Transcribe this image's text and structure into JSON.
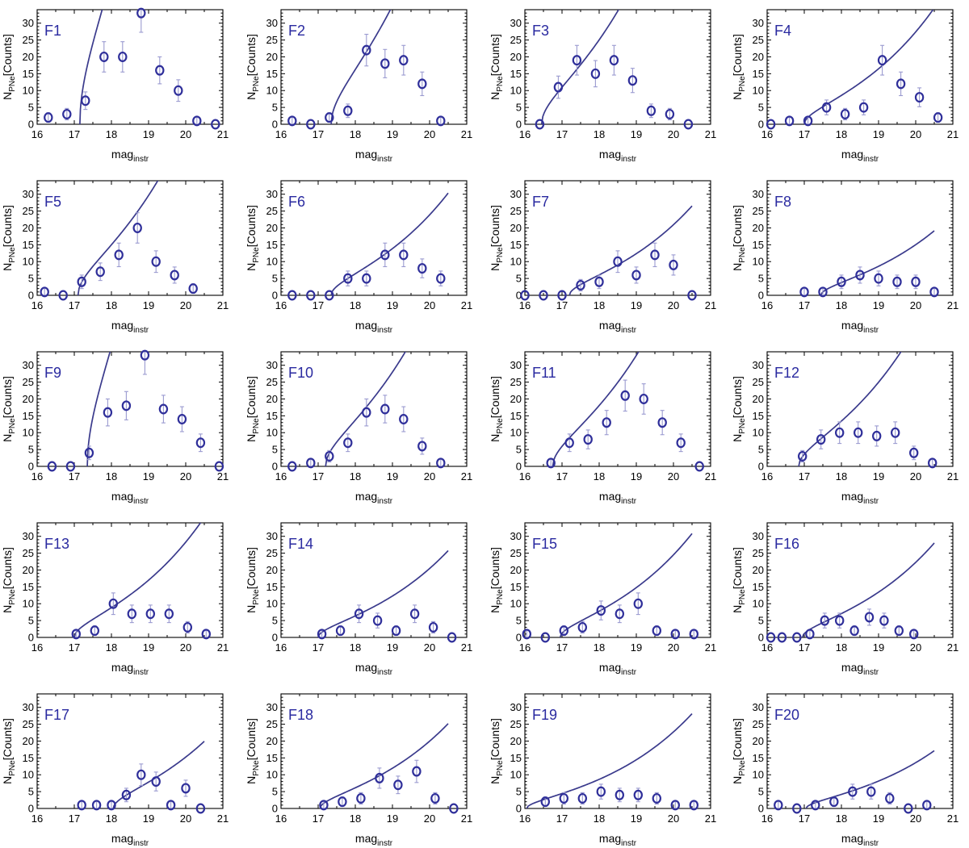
{
  "figure": {
    "x_label": "mag",
    "x_label_sub": "instr",
    "y_label_prefix": "N",
    "y_label_sub": "PNe",
    "y_label_suffix": "[Counts]",
    "colors": {
      "marker": "#2f2f9a",
      "error_bar": "#9a9ad0",
      "fit": "#3a3a8c",
      "panel_label": "#2a2aa0"
    }
  },
  "chart_data": [
    {
      "type": "scatter",
      "label": "F1",
      "xlim": [
        16,
        21
      ],
      "ylim": [
        0,
        34
      ],
      "xticks": [
        16,
        17,
        18,
        19,
        20,
        21
      ],
      "yticks": [
        0,
        5,
        10,
        15,
        20,
        25,
        30
      ],
      "x": [
        16.3,
        16.8,
        17.3,
        17.8,
        18.3,
        18.8,
        19.3,
        19.8,
        20.3,
        20.8
      ],
      "y": [
        2,
        3,
        7,
        20,
        20,
        33,
        16,
        10,
        1,
        0
      ],
      "err": [
        1.4,
        1.7,
        2.6,
        4.5,
        4.5,
        5.7,
        4.0,
        3.2,
        1.0,
        0
      ],
      "fit": {
        "m0": 17.15,
        "A": 36.5,
        "m1": 18.9
      }
    },
    {
      "type": "scatter",
      "label": "F2",
      "xlim": [
        16,
        21
      ],
      "ylim": [
        0,
        34
      ],
      "xticks": [
        16,
        17,
        18,
        19,
        20,
        21
      ],
      "yticks": [
        0,
        5,
        10,
        15,
        20,
        25,
        30
      ],
      "x": [
        16.3,
        16.8,
        17.3,
        17.8,
        18.3,
        18.8,
        19.3,
        19.8,
        20.3
      ],
      "y": [
        1,
        0,
        2,
        4,
        22,
        18,
        19,
        12,
        1
      ],
      "err": [
        1,
        0,
        1.4,
        2,
        4.7,
        4.2,
        4.4,
        3.5,
        1
      ],
      "fit": {
        "m0": 17.35,
        "A": 16.5,
        "m1": 20.5
      }
    },
    {
      "type": "scatter",
      "label": "F3",
      "xlim": [
        16,
        21
      ],
      "ylim": [
        0,
        34
      ],
      "xticks": [
        16,
        17,
        18,
        19,
        20,
        21
      ],
      "yticks": [
        0,
        5,
        10,
        15,
        20,
        25,
        30
      ],
      "x": [
        16.4,
        16.9,
        17.4,
        17.9,
        18.4,
        18.9,
        19.4,
        19.9,
        20.4
      ],
      "y": [
        0,
        11,
        19,
        15,
        19,
        13,
        4,
        3,
        0
      ],
      "err": [
        0,
        3.3,
        4.4,
        3.9,
        4.4,
        3.6,
        2,
        1.7,
        0
      ],
      "fit": {
        "m0": 16.45,
        "A": 12.5,
        "m1": 20.5
      }
    },
    {
      "type": "scatter",
      "label": "F4",
      "xlim": [
        16,
        21
      ],
      "ylim": [
        0,
        34
      ],
      "xticks": [
        16,
        17,
        18,
        19,
        20,
        21
      ],
      "yticks": [
        0,
        5,
        10,
        15,
        20,
        25,
        30
      ],
      "x": [
        16.1,
        16.6,
        17.1,
        17.6,
        18.1,
        18.6,
        19.1,
        19.6,
        20.1,
        20.6
      ],
      "y": [
        0,
        1,
        1,
        5,
        3,
        5,
        19,
        12,
        8,
        2
      ],
      "err": [
        0,
        1,
        1,
        2.2,
        1.7,
        2.2,
        4.4,
        3.5,
        2.8,
        1.4
      ],
      "fit": {
        "m0": 17.0,
        "A": 6.3,
        "m1": 20.5
      }
    },
    {
      "type": "scatter",
      "label": "F5",
      "xlim": [
        16,
        21
      ],
      "ylim": [
        0,
        34
      ],
      "xticks": [
        16,
        17,
        18,
        19,
        20,
        21
      ],
      "yticks": [
        0,
        5,
        10,
        15,
        20,
        25,
        30
      ],
      "x": [
        16.2,
        16.7,
        17.2,
        17.7,
        18.2,
        18.7,
        19.2,
        19.7,
        20.2
      ],
      "y": [
        1,
        0,
        4,
        7,
        12,
        20,
        10,
        6,
        2
      ],
      "err": [
        1,
        0,
        2,
        2.6,
        3.5,
        4.5,
        3.2,
        2.4,
        1.4
      ],
      "fit": {
        "m0": 17.1,
        "A": 12.0,
        "m1": 20.5
      }
    },
    {
      "type": "scatter",
      "label": "F6",
      "xlim": [
        16,
        21
      ],
      "ylim": [
        0,
        34
      ],
      "xticks": [
        16,
        17,
        18,
        19,
        20,
        21
      ],
      "yticks": [
        0,
        5,
        10,
        15,
        20,
        25,
        30
      ],
      "x": [
        16.3,
        16.8,
        17.3,
        17.8,
        18.3,
        18.8,
        19.3,
        19.8,
        20.3
      ],
      "y": [
        0,
        0,
        0,
        5,
        5,
        12,
        12,
        8,
        5
      ],
      "err": [
        0,
        0,
        0,
        2.2,
        2.2,
        3.5,
        3.5,
        2.8,
        2.2
      ],
      "fit": {
        "m0": 17.35,
        "A": 6.5,
        "m1": 20.5
      }
    },
    {
      "type": "scatter",
      "label": "F7",
      "xlim": [
        16,
        21
      ],
      "ylim": [
        0,
        34
      ],
      "xticks": [
        16,
        17,
        18,
        19,
        20,
        21
      ],
      "yticks": [
        0,
        5,
        10,
        15,
        20,
        25,
        30
      ],
      "x": [
        16.0,
        16.5,
        17.0,
        17.5,
        18.0,
        18.5,
        19.0,
        19.5,
        20.0,
        20.5
      ],
      "y": [
        0,
        0,
        0,
        3,
        4,
        10,
        6,
        12,
        9,
        0
      ],
      "err": [
        0,
        0,
        0,
        1.7,
        2,
        3.2,
        2.4,
        3.5,
        3,
        0
      ],
      "fit": {
        "m0": 17.2,
        "A": 5.3,
        "m1": 20.5
      }
    },
    {
      "type": "scatter",
      "label": "F8",
      "xlim": [
        16,
        21
      ],
      "ylim": [
        0,
        34
      ],
      "xticks": [
        16,
        17,
        18,
        19,
        20,
        21
      ],
      "yticks": [
        0,
        5,
        10,
        15,
        20,
        25,
        30
      ],
      "x": [
        17.0,
        17.5,
        18.0,
        18.5,
        19.0,
        19.5,
        20.0,
        20.5
      ],
      "y": [
        1,
        1,
        4,
        6,
        5,
        4,
        4,
        1
      ],
      "err": [
        1,
        1,
        2,
        2.4,
        2.2,
        2,
        2,
        1
      ],
      "fit": {
        "m0": 17.45,
        "A": 4.3,
        "m1": 20.5
      }
    },
    {
      "type": "scatter",
      "label": "F9",
      "xlim": [
        16,
        21
      ],
      "ylim": [
        0,
        34
      ],
      "xticks": [
        16,
        17,
        18,
        19,
        20,
        21
      ],
      "yticks": [
        0,
        5,
        10,
        15,
        20,
        25,
        30
      ],
      "x": [
        16.4,
        16.9,
        17.4,
        17.9,
        18.4,
        18.9,
        19.4,
        19.9,
        20.4,
        20.9
      ],
      "y": [
        0,
        0,
        4,
        16,
        18,
        33,
        17,
        14,
        7,
        0
      ],
      "err": [
        0,
        0,
        2,
        4,
        4.2,
        5.7,
        4.1,
        3.7,
        2.6,
        0
      ],
      "fit": {
        "m0": 17.35,
        "A": 36.0,
        "m1": 18.9
      }
    },
    {
      "type": "scatter",
      "label": "F10",
      "xlim": [
        16,
        21
      ],
      "ylim": [
        0,
        34
      ],
      "xticks": [
        16,
        17,
        18,
        19,
        20,
        21
      ],
      "yticks": [
        0,
        5,
        10,
        15,
        20,
        25,
        30
      ],
      "x": [
        16.3,
        16.8,
        17.3,
        17.8,
        18.3,
        18.8,
        19.3,
        19.8,
        20.3
      ],
      "y": [
        0,
        1,
        3,
        7,
        16,
        17,
        14,
        6,
        1
      ],
      "err": [
        0,
        1,
        1.7,
        2.6,
        4,
        4.1,
        3.7,
        2.4,
        1
      ],
      "fit": {
        "m0": 17.2,
        "A": 12.0,
        "m1": 20.5
      }
    },
    {
      "type": "scatter",
      "label": "F11",
      "xlim": [
        16,
        21
      ],
      "ylim": [
        0,
        34
      ],
      "xticks": [
        16,
        17,
        18,
        19,
        20,
        21
      ],
      "yticks": [
        0,
        5,
        10,
        15,
        20,
        25,
        30
      ],
      "x": [
        16.7,
        17.2,
        17.7,
        18.2,
        18.7,
        19.2,
        19.7,
        20.2,
        20.7
      ],
      "y": [
        1,
        7,
        8,
        13,
        21,
        20,
        13,
        7,
        0
      ],
      "err": [
        1,
        2.6,
        2.8,
        3.6,
        4.6,
        4.5,
        3.6,
        2.6,
        0
      ],
      "fit": {
        "m0": 16.75,
        "A": 11.0,
        "m1": 20.5
      }
    },
    {
      "type": "scatter",
      "label": "F12",
      "xlim": [
        16,
        21
      ],
      "ylim": [
        0,
        34
      ],
      "xticks": [
        16,
        17,
        18,
        19,
        20,
        21
      ],
      "yticks": [
        0,
        5,
        10,
        15,
        20,
        25,
        30
      ],
      "x": [
        16.95,
        17.45,
        17.95,
        18.45,
        18.95,
        19.45,
        19.95,
        20.45
      ],
      "y": [
        3,
        8,
        10,
        10,
        9,
        10,
        4,
        1
      ],
      "err": [
        1.7,
        2.8,
        3.2,
        3.2,
        3,
        3.2,
        2,
        1
      ],
      "fit": {
        "m0": 16.85,
        "A": 8.8,
        "m1": 20.5
      }
    },
    {
      "type": "scatter",
      "label": "F13",
      "xlim": [
        16,
        21
      ],
      "ylim": [
        0,
        34
      ],
      "xticks": [
        16,
        17,
        18,
        19,
        20,
        21
      ],
      "yticks": [
        0,
        5,
        10,
        15,
        20,
        25,
        30
      ],
      "x": [
        17.05,
        17.55,
        18.05,
        18.55,
        19.05,
        19.55,
        20.05,
        20.55
      ],
      "y": [
        1,
        2,
        10,
        7,
        7,
        7,
        3,
        1
      ],
      "err": [
        1,
        1.4,
        3.2,
        2.6,
        2.6,
        2.6,
        1.7,
        1
      ],
      "fit": {
        "m0": 17.0,
        "A": 6.5,
        "m1": 20.5
      }
    },
    {
      "type": "scatter",
      "label": "F14",
      "xlim": [
        16,
        21
      ],
      "ylim": [
        0,
        34
      ],
      "xticks": [
        16,
        17,
        18,
        19,
        20,
        21
      ],
      "yticks": [
        0,
        5,
        10,
        15,
        20,
        25,
        30
      ],
      "x": [
        17.1,
        17.6,
        18.1,
        18.6,
        19.1,
        19.6,
        20.1,
        20.6
      ],
      "y": [
        1,
        2,
        7,
        5,
        2,
        7,
        3,
        0
      ],
      "err": [
        1,
        1.4,
        2.6,
        2.2,
        1.4,
        2.6,
        1.7,
        0
      ],
      "fit": {
        "m0": 17.0,
        "A": 4.7,
        "m1": 20.5
      }
    },
    {
      "type": "scatter",
      "label": "F15",
      "xlim": [
        16,
        21
      ],
      "ylim": [
        0,
        34
      ],
      "xticks": [
        16,
        17,
        18,
        19,
        20,
        21
      ],
      "yticks": [
        0,
        5,
        10,
        15,
        20,
        25,
        30
      ],
      "x": [
        16.05,
        16.55,
        17.05,
        17.55,
        18.05,
        18.55,
        19.05,
        19.55,
        20.05,
        20.55
      ],
      "y": [
        1,
        0,
        2,
        3,
        8,
        7,
        10,
        2,
        1,
        1
      ],
      "err": [
        1,
        0,
        1.4,
        1.7,
        2.8,
        2.6,
        3.2,
        1.4,
        1,
        1
      ],
      "fit": {
        "m0": 16.95,
        "A": 5.5,
        "m1": 20.5
      }
    },
    {
      "type": "scatter",
      "label": "F16",
      "xlim": [
        16,
        21
      ],
      "ylim": [
        0,
        34
      ],
      "xticks": [
        16,
        17,
        18,
        19,
        20,
        21
      ],
      "yticks": [
        0,
        5,
        10,
        15,
        20,
        25,
        30
      ],
      "x": [
        16.1,
        16.4,
        16.8,
        17.15,
        17.55,
        17.95,
        18.35,
        18.75,
        19.15,
        19.55,
        19.95
      ],
      "y": [
        0,
        0,
        0,
        1,
        5,
        5,
        2,
        6,
        5,
        2,
        1
      ],
      "err": [
        0,
        0,
        0,
        1,
        2.2,
        2.2,
        1.4,
        2.4,
        2.2,
        1.4,
        1
      ],
      "fit": {
        "m0": 16.95,
        "A": 5.0,
        "m1": 20.5
      }
    },
    {
      "type": "scatter",
      "label": "F17",
      "xlim": [
        16,
        21
      ],
      "ylim": [
        0,
        34
      ],
      "xticks": [
        16,
        17,
        18,
        19,
        20,
        21
      ],
      "yticks": [
        0,
        5,
        10,
        15,
        20,
        25,
        30
      ],
      "x": [
        17.2,
        17.6,
        18.0,
        18.4,
        18.8,
        19.2,
        19.6,
        20.0,
        20.4
      ],
      "y": [
        1,
        1,
        1,
        4,
        10,
        8,
        1,
        6,
        0
      ],
      "err": [
        1,
        1,
        1,
        2,
        3.2,
        2.8,
        1,
        2.4,
        0
      ],
      "fit": {
        "m0": 18.05,
        "A": 6.0,
        "m1": 20.5
      }
    },
    {
      "type": "scatter",
      "label": "F18",
      "xlim": [
        16,
        21
      ],
      "ylim": [
        0,
        34
      ],
      "xticks": [
        16,
        17,
        18,
        19,
        20,
        21
      ],
      "yticks": [
        0,
        5,
        10,
        15,
        20,
        25,
        30
      ],
      "x": [
        17.15,
        17.65,
        18.15,
        18.65,
        19.15,
        19.65,
        20.15,
        20.65
      ],
      "y": [
        1,
        2,
        3,
        9,
        7,
        11,
        3,
        0
      ],
      "err": [
        1,
        1.4,
        1.7,
        3,
        2.6,
        3.3,
        1.7,
        0
      ],
      "fit": {
        "m0": 17.05,
        "A": 4.7,
        "m1": 20.5
      }
    },
    {
      "type": "scatter",
      "label": "F19",
      "xlim": [
        16,
        21
      ],
      "ylim": [
        0,
        34
      ],
      "xticks": [
        16,
        17,
        18,
        19,
        20,
        21
      ],
      "yticks": [
        0,
        5,
        10,
        15,
        20,
        25,
        30
      ],
      "x": [
        16.55,
        17.05,
        17.55,
        18.05,
        18.55,
        19.05,
        19.55,
        20.05,
        20.55
      ],
      "y": [
        2,
        3,
        3,
        5,
        4,
        4,
        3,
        1,
        1
      ],
      "err": [
        1.4,
        1.7,
        1.7,
        2.2,
        2,
        2,
        1.7,
        1,
        1
      ],
      "fit": {
        "m0": 16.05,
        "A": 3.4,
        "m1": 20.5
      }
    },
    {
      "type": "scatter",
      "label": "F20",
      "xlim": [
        16,
        21
      ],
      "ylim": [
        0,
        34
      ],
      "xticks": [
        16,
        17,
        18,
        19,
        20,
        21
      ],
      "yticks": [
        0,
        5,
        10,
        15,
        20,
        25,
        30
      ],
      "x": [
        16.3,
        16.8,
        17.3,
        17.8,
        18.3,
        18.8,
        19.3,
        19.8,
        20.3
      ],
      "y": [
        1,
        0,
        1,
        2,
        5,
        5,
        3,
        0,
        1
      ],
      "err": [
        1,
        0,
        1,
        1.4,
        2.2,
        2.2,
        1.7,
        0,
        1
      ],
      "fit": {
        "m0": 17.05,
        "A": 3.2,
        "m1": 20.5
      }
    }
  ]
}
